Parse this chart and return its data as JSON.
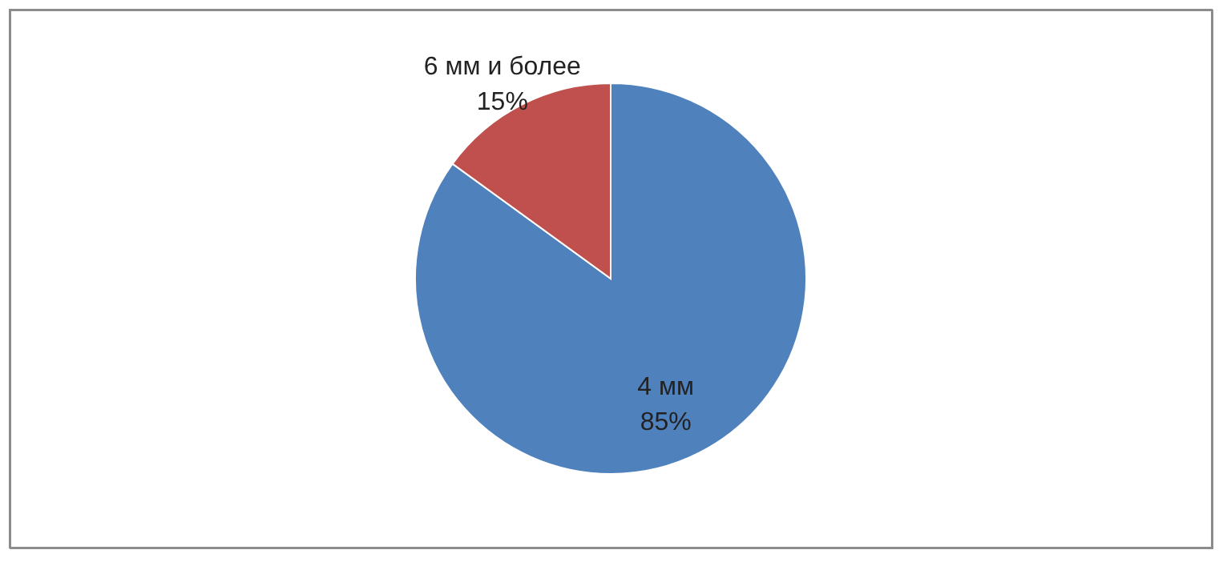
{
  "chart_data": {
    "type": "pie",
    "categories": [
      "4 мм",
      "6 мм и более"
    ],
    "values": [
      85,
      15
    ],
    "value_labels": [
      "85%",
      "15%"
    ],
    "colors": [
      "#4f81bd",
      "#c0504d"
    ],
    "legend": false
  }
}
